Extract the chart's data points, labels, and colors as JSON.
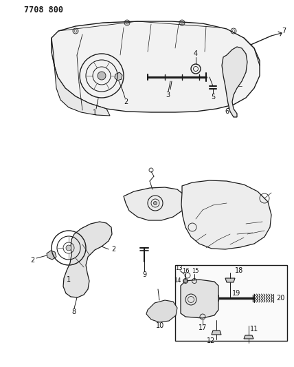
{
  "title": "7708 800",
  "bg_color": "#ffffff",
  "line_color": "#1a1a1a",
  "label_color": "#111111",
  "label_fontsize": 7,
  "title_fontsize": 8.5,
  "figsize": [
    4.28,
    5.33
  ],
  "dpi": 100
}
